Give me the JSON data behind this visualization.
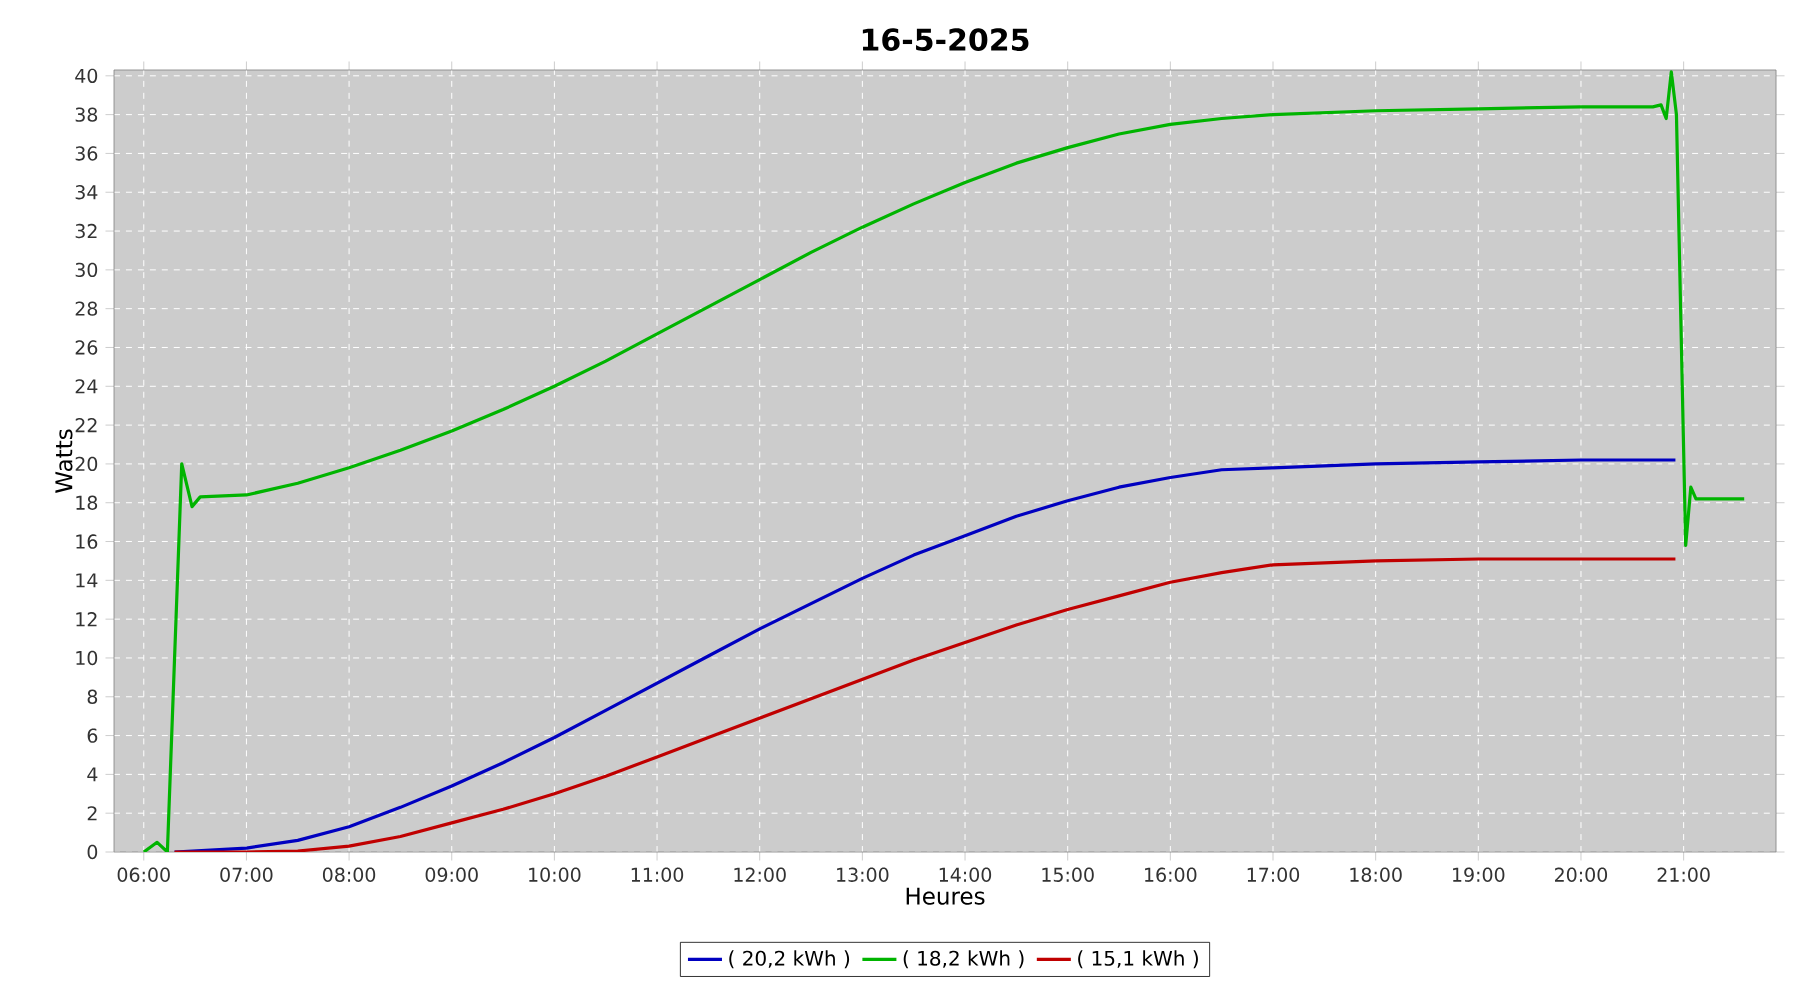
{
  "chart_data": {
    "type": "line",
    "title": "16-5-2025",
    "xlabel": "Heures",
    "ylabel": "Watts",
    "xlim": [
      5.71,
      21.9
    ],
    "ylim": [
      0,
      40.3
    ],
    "xticks": [
      {
        "value": 6,
        "label": "06:00"
      },
      {
        "value": 7,
        "label": "07:00"
      },
      {
        "value": 8,
        "label": "08:00"
      },
      {
        "value": 9,
        "label": "09:00"
      },
      {
        "value": 10,
        "label": "10:00"
      },
      {
        "value": 11,
        "label": "11:00"
      },
      {
        "value": 12,
        "label": "12:00"
      },
      {
        "value": 13,
        "label": "13:00"
      },
      {
        "value": 14,
        "label": "14:00"
      },
      {
        "value": 15,
        "label": "15:00"
      },
      {
        "value": 16,
        "label": "16:00"
      },
      {
        "value": 17,
        "label": "17:00"
      },
      {
        "value": 18,
        "label": "18:00"
      },
      {
        "value": 19,
        "label": "19:00"
      },
      {
        "value": 20,
        "label": "20:00"
      },
      {
        "value": 21,
        "label": "21:00"
      }
    ],
    "yticks": [
      0,
      2,
      4,
      6,
      8,
      10,
      12,
      14,
      16,
      18,
      20,
      22,
      24,
      26,
      28,
      30,
      32,
      34,
      36,
      38,
      40
    ],
    "grid": true,
    "legend": "bottom",
    "marker": "none",
    "line_style": "solid",
    "series": [
      {
        "name": "( 20,2 kWh )",
        "color": "#0000c0",
        "x": [
          6.3,
          7,
          7.5,
          8,
          8.5,
          9,
          9.5,
          10,
          10.5,
          11,
          11.5,
          12,
          12.5,
          13,
          13.5,
          14,
          14.5,
          15,
          15.5,
          16,
          16.5,
          17,
          18,
          19,
          20,
          20.92
        ],
        "values": [
          0,
          0.2,
          0.6,
          1.3,
          2.3,
          3.4,
          4.6,
          5.9,
          7.3,
          8.7,
          10.1,
          11.5,
          12.8,
          14.1,
          15.3,
          16.3,
          17.3,
          18.1,
          18.8,
          19.3,
          19.7,
          19.8,
          20,
          20.1,
          20.2,
          20.2
        ]
      },
      {
        "name": "( 18,2 kWh )",
        "color": "#00b400",
        "x": [
          6.0,
          6.13,
          6.23,
          6.37,
          6.47,
          6.55,
          7,
          7.5,
          8,
          8.5,
          9,
          9.5,
          10,
          10.5,
          11,
          11.5,
          12,
          12.5,
          13,
          13.5,
          14,
          14.5,
          15,
          15.5,
          16,
          16.5,
          17,
          18,
          19,
          20,
          20.7,
          20.78,
          20.83,
          20.88,
          20.93,
          21.02,
          21.07,
          21.12,
          21.59
        ],
        "values": [
          0,
          0.5,
          0,
          20,
          17.8,
          18.3,
          18.4,
          19,
          19.8,
          20.7,
          21.7,
          22.8,
          24,
          25.3,
          26.7,
          28.1,
          29.5,
          30.9,
          32.2,
          33.4,
          34.5,
          35.5,
          36.3,
          37,
          37.5,
          37.8,
          38,
          38.2,
          38.3,
          38.4,
          38.4,
          38.5,
          37.8,
          40.2,
          38,
          15.8,
          18.8,
          18.2,
          18.2
        ]
      },
      {
        "name": "( 15,1 kWh )",
        "color": "#c00000",
        "x": [
          6.3,
          7,
          7.5,
          8,
          8.5,
          9,
          9.5,
          10,
          10.5,
          11,
          11.5,
          12,
          12.5,
          13,
          13.5,
          14,
          14.5,
          15,
          15.5,
          16,
          16.5,
          17,
          18,
          19,
          20,
          20.92
        ],
        "values": [
          0,
          0,
          0.05,
          0.3,
          0.8,
          1.5,
          2.2,
          3,
          3.9,
          4.9,
          5.9,
          6.9,
          7.9,
          8.9,
          9.9,
          10.8,
          11.7,
          12.5,
          13.2,
          13.9,
          14.4,
          14.8,
          15,
          15.1,
          15.1,
          15.1
        ]
      }
    ]
  }
}
